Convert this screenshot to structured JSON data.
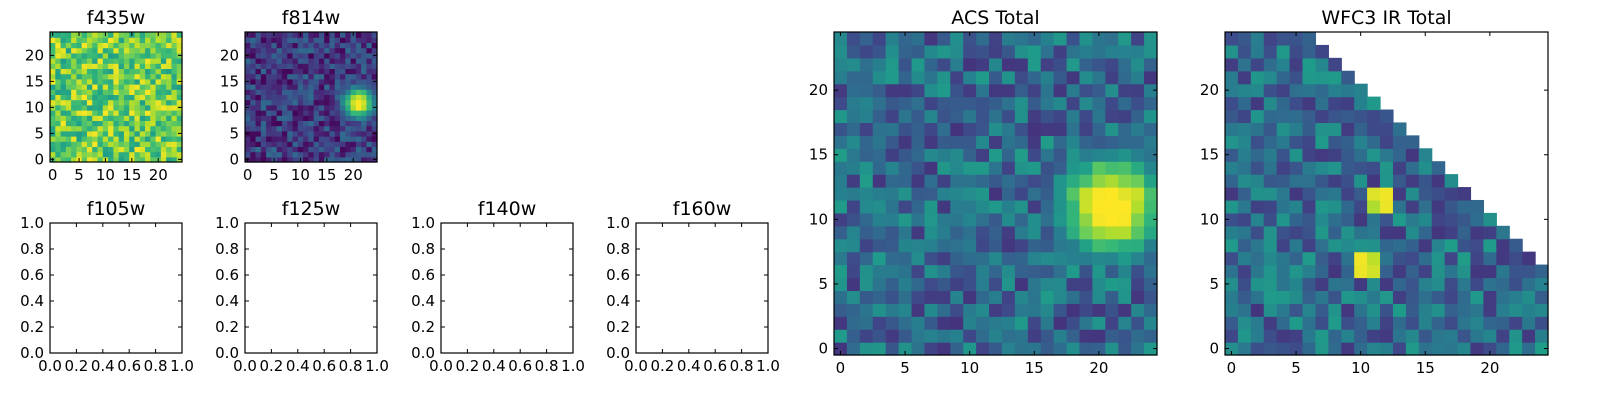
{
  "colormap": [
    "#440154",
    "#482878",
    "#3e4989",
    "#31688e",
    "#26828e",
    "#1f9e89",
    "#35b779",
    "#6ece58",
    "#b5de2b",
    "#fde725"
  ],
  "frame_color": "#000000",
  "chart_data": [
    {
      "id": "f435w",
      "type": "heatmap",
      "title": "f435w",
      "grid_size": [
        25,
        25
      ],
      "xlim": [
        -0.5,
        24.5
      ],
      "ylim": [
        -0.5,
        24.5
      ],
      "xticks": [
        0,
        5,
        10,
        15,
        20
      ],
      "xtick_labels": [
        "0",
        "5",
        "10",
        "15",
        "20"
      ],
      "yticks": [
        0,
        5,
        10,
        15,
        20
      ],
      "ytick_labels": [
        "0",
        "5",
        "10",
        "15",
        "20"
      ],
      "pattern": "noise",
      "noise_level": [
        0.55,
        1.0
      ],
      "source": null,
      "triangular_mask": false
    },
    {
      "id": "f814w",
      "type": "heatmap",
      "title": "f814w",
      "grid_size": [
        25,
        25
      ],
      "xlim": [
        -0.5,
        24.5
      ],
      "ylim": [
        -0.5,
        24.5
      ],
      "xticks": [
        0,
        5,
        10,
        15,
        20
      ],
      "xtick_labels": [
        "0",
        "5",
        "10",
        "15",
        "20"
      ],
      "yticks": [
        0,
        5,
        10,
        15,
        20
      ],
      "ytick_labels": [
        "0",
        "5",
        "10",
        "15",
        "20"
      ],
      "pattern": "noise_with_source",
      "noise_level": [
        0.0,
        0.35
      ],
      "source": {
        "x": 21,
        "y": 11,
        "sigma": 2.2,
        "peak": 1.0
      },
      "triangular_mask": false
    },
    {
      "id": "f105w",
      "type": "empty",
      "title": "f105w",
      "xlim": [
        0,
        1
      ],
      "ylim": [
        0,
        1
      ],
      "xticks": [
        0,
        0.2,
        0.4,
        0.6,
        0.8,
        1.0
      ],
      "xtick_labels": [
        "0.0",
        "0.2",
        "0.4",
        "0.6",
        "0.8",
        "1.0"
      ],
      "yticks": [
        0,
        0.2,
        0.4,
        0.6,
        0.8,
        1.0
      ],
      "ytick_labels": [
        "0.0",
        "0.2",
        "0.4",
        "0.6",
        "0.8",
        "1.0"
      ]
    },
    {
      "id": "f125w",
      "type": "empty",
      "title": "f125w",
      "xlim": [
        0,
        1
      ],
      "ylim": [
        0,
        1
      ],
      "xticks": [
        0,
        0.2,
        0.4,
        0.6,
        0.8,
        1.0
      ],
      "xtick_labels": [
        "0.0",
        "0.2",
        "0.4",
        "0.6",
        "0.8",
        "1.0"
      ],
      "yticks": [
        0,
        0.2,
        0.4,
        0.6,
        0.8,
        1.0
      ],
      "ytick_labels": [
        "0.0",
        "0.2",
        "0.4",
        "0.6",
        "0.8",
        "1.0"
      ]
    },
    {
      "id": "f140w",
      "type": "empty",
      "title": "f140w",
      "xlim": [
        0,
        1
      ],
      "ylim": [
        0,
        1
      ],
      "xticks": [
        0,
        0.2,
        0.4,
        0.6,
        0.8,
        1.0
      ],
      "xtick_labels": [
        "0.0",
        "0.2",
        "0.4",
        "0.6",
        "0.8",
        "1.0"
      ],
      "yticks": [
        0,
        0.2,
        0.4,
        0.6,
        0.8,
        1.0
      ],
      "ytick_labels": [
        "0.0",
        "0.2",
        "0.4",
        "0.6",
        "0.8",
        "1.0"
      ]
    },
    {
      "id": "f160w",
      "type": "empty",
      "title": "f160w",
      "xlim": [
        0,
        1
      ],
      "ylim": [
        0,
        1
      ],
      "xticks": [
        0,
        0.2,
        0.4,
        0.6,
        0.8,
        1.0
      ],
      "xtick_labels": [
        "0.0",
        "0.2",
        "0.4",
        "0.6",
        "0.8",
        "1.0"
      ],
      "yticks": [
        0,
        0.2,
        0.4,
        0.6,
        0.8,
        1.0
      ],
      "ytick_labels": [
        "0.0",
        "0.2",
        "0.4",
        "0.6",
        "0.8",
        "1.0"
      ]
    },
    {
      "id": "acs-total",
      "type": "heatmap",
      "title": "ACS Total",
      "grid_size": [
        25,
        25
      ],
      "xlim": [
        -0.5,
        24.5
      ],
      "ylim": [
        -0.5,
        24.5
      ],
      "xticks": [
        0,
        5,
        10,
        15,
        20
      ],
      "xtick_labels": [
        "0",
        "5",
        "10",
        "15",
        "20"
      ],
      "yticks": [
        0,
        5,
        10,
        15,
        20
      ],
      "ytick_labels": [
        "0",
        "5",
        "10",
        "15",
        "20"
      ],
      "pattern": "noise_with_source",
      "noise_level": [
        0.15,
        0.55
      ],
      "source": {
        "x": 21,
        "y": 11,
        "sigma": 3.0,
        "peak": 1.0
      },
      "triangular_mask": false
    },
    {
      "id": "wfc3-ir-total",
      "type": "heatmap",
      "title": "WFC3 IR Total",
      "grid_size": [
        25,
        25
      ],
      "xlim": [
        -0.5,
        24.5
      ],
      "ylim": [
        -0.5,
        24.5
      ],
      "xticks": [
        0,
        5,
        10,
        15,
        20
      ],
      "xtick_labels": [
        "0",
        "5",
        "10",
        "15",
        "20"
      ],
      "yticks": [
        0,
        5,
        10,
        15,
        20
      ],
      "ytick_labels": [
        "0",
        "5",
        "10",
        "15",
        "20"
      ],
      "pattern": "noise_with_hotspots",
      "noise_level": [
        0.15,
        0.55
      ],
      "hotspots": [
        {
          "x": 11,
          "y": 12,
          "value": 0.95
        },
        {
          "x": 12,
          "y": 12,
          "value": 0.98
        },
        {
          "x": 11,
          "y": 11,
          "value": 0.88
        },
        {
          "x": 12,
          "y": 11,
          "value": 0.97
        },
        {
          "x": 10,
          "y": 7,
          "value": 0.98
        },
        {
          "x": 11,
          "y": 7,
          "value": 0.9
        },
        {
          "x": 10,
          "y": 6,
          "value": 0.97
        },
        {
          "x": 11,
          "y": 6,
          "value": 0.93
        }
      ],
      "triangular_mask": true
    }
  ]
}
